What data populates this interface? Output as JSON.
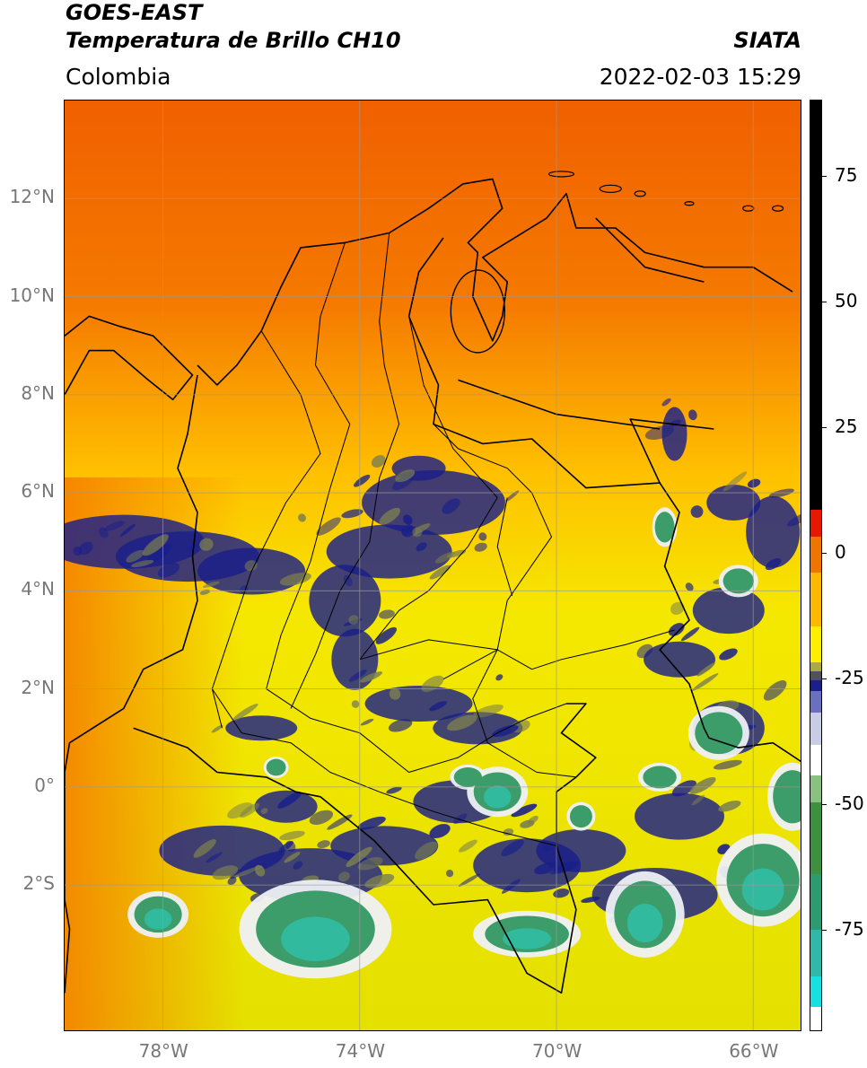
{
  "header": {
    "satellite": "GOES-EAST",
    "product": "Temperatura de Brillo CH10",
    "region": "Colombia",
    "agency": "SIATA",
    "timestamp": "2022-02-03 15:29"
  },
  "map": {
    "lon_range": [
      -80,
      -65
    ],
    "lat_range": [
      -5,
      14
    ],
    "lat_ticks": [
      {
        "value": 12,
        "label": "12°N"
      },
      {
        "value": 10,
        "label": "10°N"
      },
      {
        "value": 8,
        "label": "8°N"
      },
      {
        "value": 6,
        "label": "6°N"
      },
      {
        "value": 4,
        "label": "4°N"
      },
      {
        "value": 2,
        "label": "2°N"
      },
      {
        "value": 0,
        "label": "0°"
      },
      {
        "value": -2,
        "label": "2°S"
      }
    ],
    "lon_ticks": [
      {
        "value": -78,
        "label": "78°W"
      },
      {
        "value": -74,
        "label": "74°W"
      },
      {
        "value": -70,
        "label": "70°W"
      },
      {
        "value": -66,
        "label": "66°W"
      }
    ],
    "colors": {
      "warm": "#f06a00",
      "mid": "#ffd000",
      "cool": "#f2f200",
      "cloud_blue": "#1a1f8a",
      "cloud_white": "#eef0f5",
      "cloud_green": "#3c9c6a",
      "cloud_teal": "#2fc0a6",
      "border": "#000000",
      "grid": "#9a9a9a"
    }
  },
  "colorbar": {
    "ticks": [
      {
        "value": 75,
        "label": "75"
      },
      {
        "value": 50,
        "label": "50"
      },
      {
        "value": 25,
        "label": "25"
      },
      {
        "value": 0,
        "label": "0"
      },
      {
        "value": -25,
        "label": "-25"
      },
      {
        "value": -50,
        "label": "-50"
      },
      {
        "value": -75,
        "label": "-75"
      }
    ],
    "range": [
      -95,
      90
    ]
  }
}
